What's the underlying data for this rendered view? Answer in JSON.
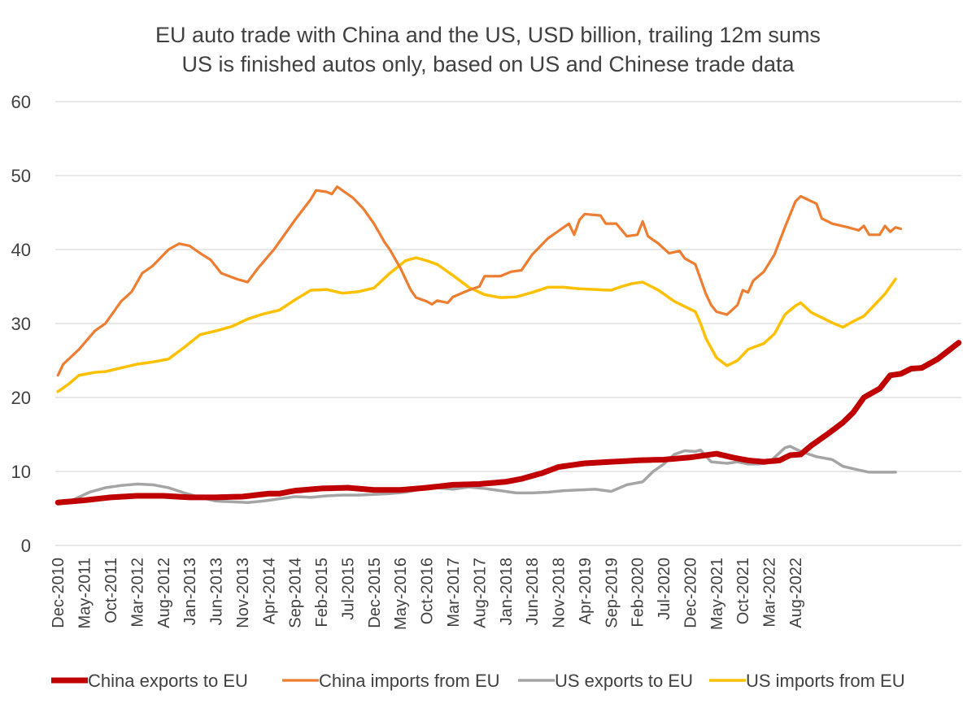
{
  "chart_data": {
    "type": "line",
    "title": "EU auto trade with China and the US, USD billion, trailing 12m sums",
    "subtitle": "US is finished autos only, based on US and Chinese trade data",
    "xlabel": "",
    "ylabel": "",
    "ylim": [
      0,
      60
    ],
    "yticks": [
      "0",
      "10",
      "20",
      "30",
      "40",
      "50",
      "60"
    ],
    "grid": true,
    "legend_position": "bottom",
    "x_start": "Dec-2010",
    "x_end": "Nov-2022",
    "x_tick_step_months": 5,
    "x_tick_labels": [
      "Dec-2010",
      "May-2011",
      "Oct-2011",
      "Mar-2012",
      "Aug-2012",
      "Jan-2013",
      "Jun-2013",
      "Nov-2013",
      "Apr-2014",
      "Sep-2014",
      "Feb-2015",
      "Jul-2015",
      "Dec-2015",
      "May-2016",
      "Oct-2016",
      "Mar-2017",
      "Aug-2017",
      "Jan-2018",
      "Jun-2018",
      "Nov-2018",
      "Apr-2019",
      "Sep-2019",
      "Feb-2020",
      "Jul-2020",
      "Dec-2020",
      "May-2021",
      "Oct-2021",
      "Mar-2022",
      "Aug-2022"
    ],
    "series": [
      {
        "name": "China exports to EU",
        "color": "#C00000",
        "width": 7,
        "keypoints": [
          [
            0,
            5.8
          ],
          [
            5,
            6.1
          ],
          [
            10,
            6.5
          ],
          [
            15,
            6.7
          ],
          [
            20,
            6.7
          ],
          [
            25,
            6.5
          ],
          [
            30,
            6.5
          ],
          [
            35,
            6.6
          ],
          [
            40,
            7.0
          ],
          [
            42,
            7.0
          ],
          [
            45,
            7.4
          ],
          [
            50,
            7.7
          ],
          [
            55,
            7.8
          ],
          [
            60,
            7.5
          ],
          [
            65,
            7.5
          ],
          [
            70,
            7.8
          ],
          [
            75,
            8.2
          ],
          [
            80,
            8.3
          ],
          [
            85,
            8.6
          ],
          [
            88,
            9.0
          ],
          [
            92,
            9.8
          ],
          [
            95,
            10.6
          ],
          [
            100,
            11.1
          ],
          [
            105,
            11.3
          ],
          [
            110,
            11.5
          ],
          [
            115,
            11.6
          ],
          [
            120,
            11.9
          ],
          [
            125,
            12.4
          ],
          [
            128,
            11.9
          ],
          [
            131,
            11.5
          ],
          [
            134,
            11.3
          ],
          [
            137,
            11.5
          ],
          [
            139,
            12.2
          ],
          [
            141,
            12.3
          ],
          [
            143,
            13.5
          ],
          [
            146,
            15.0
          ],
          [
            149,
            16.6
          ],
          [
            151,
            18.0
          ],
          [
            153,
            20.0
          ],
          [
            156,
            21.2
          ],
          [
            158,
            23.0
          ],
          [
            160,
            23.2
          ],
          [
            162,
            23.9
          ],
          [
            164,
            24.0
          ],
          [
            167,
            25.2
          ],
          [
            169,
            26.3
          ],
          [
            171,
            27.4
          ]
        ]
      },
      {
        "name": "China imports from EU",
        "color": "#ED7D31",
        "width": 3.2,
        "keypoints": [
          [
            0,
            23.0
          ],
          [
            1,
            24.5
          ],
          [
            4,
            26.5
          ],
          [
            7,
            29.0
          ],
          [
            9,
            30.0
          ],
          [
            12,
            33.0
          ],
          [
            14,
            34.3
          ],
          [
            16,
            36.8
          ],
          [
            18,
            37.8
          ],
          [
            21,
            40.0
          ],
          [
            23,
            40.8
          ],
          [
            25,
            40.5
          ],
          [
            27,
            39.5
          ],
          [
            29,
            38.6
          ],
          [
            31,
            36.8
          ],
          [
            34,
            36.0
          ],
          [
            36,
            35.6
          ],
          [
            38,
            37.5
          ],
          [
            41,
            40.0
          ],
          [
            43,
            42.0
          ],
          [
            45,
            44.0
          ],
          [
            48,
            46.8
          ],
          [
            49,
            48.0
          ],
          [
            51,
            47.8
          ],
          [
            52,
            47.5
          ],
          [
            53,
            48.5
          ],
          [
            56,
            47.0
          ],
          [
            58,
            45.5
          ],
          [
            60,
            43.5
          ],
          [
            62,
            41.0
          ],
          [
            63,
            40.0
          ],
          [
            65,
            37.5
          ],
          [
            67,
            34.5
          ],
          [
            68,
            33.5
          ],
          [
            70,
            33.0
          ],
          [
            71,
            32.6
          ],
          [
            72,
            33.1
          ],
          [
            74,
            32.8
          ],
          [
            75,
            33.6
          ],
          [
            78,
            34.5
          ],
          [
            80,
            35.0
          ],
          [
            81,
            36.4
          ],
          [
            84,
            36.4
          ],
          [
            86,
            37.0
          ],
          [
            88,
            37.2
          ],
          [
            90,
            39.3
          ],
          [
            93,
            41.5
          ],
          [
            95,
            42.5
          ],
          [
            97,
            43.5
          ],
          [
            98,
            42.0
          ],
          [
            99,
            44.0
          ],
          [
            100,
            44.8
          ],
          [
            103,
            44.6
          ],
          [
            104,
            43.5
          ],
          [
            106,
            43.5
          ],
          [
            108,
            41.8
          ],
          [
            110,
            42.0
          ],
          [
            111,
            43.8
          ],
          [
            112,
            41.8
          ],
          [
            114,
            40.8
          ],
          [
            116,
            39.5
          ],
          [
            118,
            39.8
          ],
          [
            119,
            38.8
          ],
          [
            121,
            38.0
          ],
          [
            123,
            34.0
          ],
          [
            124,
            32.5
          ],
          [
            125,
            31.6
          ],
          [
            127,
            31.2
          ],
          [
            129,
            32.5
          ],
          [
            130,
            34.5
          ],
          [
            131,
            34.2
          ],
          [
            132,
            35.8
          ],
          [
            134,
            37.0
          ],
          [
            136,
            39.3
          ],
          [
            138,
            43.0
          ],
          [
            140,
            46.5
          ],
          [
            141,
            47.2
          ],
          [
            144,
            46.2
          ],
          [
            145,
            44.2
          ],
          [
            147,
            43.5
          ],
          [
            150,
            43.0
          ],
          [
            152,
            42.6
          ],
          [
            153,
            43.2
          ],
          [
            154,
            42.0
          ],
          [
            156,
            42.0
          ],
          [
            157,
            43.2
          ],
          [
            158,
            42.4
          ],
          [
            159,
            43.0
          ],
          [
            160,
            42.8
          ]
        ]
      },
      {
        "name": "US exports to EU",
        "color": "#A5A5A5",
        "width": 3.5,
        "keypoints": [
          [
            0,
            5.8
          ],
          [
            3,
            6.2
          ],
          [
            6,
            7.2
          ],
          [
            9,
            7.8
          ],
          [
            12,
            8.1
          ],
          [
            15,
            8.3
          ],
          [
            18,
            8.2
          ],
          [
            21,
            7.8
          ],
          [
            24,
            7.1
          ],
          [
            27,
            6.5
          ],
          [
            30,
            6.0
          ],
          [
            33,
            5.9
          ],
          [
            36,
            5.8
          ],
          [
            39,
            6.0
          ],
          [
            42,
            6.3
          ],
          [
            45,
            6.6
          ],
          [
            48,
            6.5
          ],
          [
            51,
            6.7
          ],
          [
            54,
            6.8
          ],
          [
            57,
            6.8
          ],
          [
            60,
            6.9
          ],
          [
            63,
            7.0
          ],
          [
            66,
            7.2
          ],
          [
            69,
            7.6
          ],
          [
            72,
            7.8
          ],
          [
            75,
            7.6
          ],
          [
            78,
            7.9
          ],
          [
            81,
            7.7
          ],
          [
            84,
            7.4
          ],
          [
            87,
            7.1
          ],
          [
            90,
            7.1
          ],
          [
            93,
            7.2
          ],
          [
            96,
            7.4
          ],
          [
            99,
            7.5
          ],
          [
            102,
            7.6
          ],
          [
            105,
            7.3
          ],
          [
            108,
            8.2
          ],
          [
            111,
            8.6
          ],
          [
            113,
            10.0
          ],
          [
            115,
            11.0
          ],
          [
            117,
            12.3
          ],
          [
            119,
            12.8
          ],
          [
            121,
            12.7
          ],
          [
            122,
            12.9
          ],
          [
            124,
            11.3
          ],
          [
            127,
            11.1
          ],
          [
            129,
            11.3
          ],
          [
            131,
            11.0
          ],
          [
            133,
            11.0
          ],
          [
            135,
            11.2
          ],
          [
            138,
            13.2
          ],
          [
            139,
            13.4
          ],
          [
            141,
            12.7
          ],
          [
            144,
            12.0
          ],
          [
            147,
            11.6
          ],
          [
            149,
            10.7
          ],
          [
            152,
            10.2
          ],
          [
            154,
            9.9
          ],
          [
            157,
            9.9
          ],
          [
            159,
            9.9
          ]
        ]
      },
      {
        "name": "US imports from EU",
        "color": "#FFC000",
        "width": 3.5,
        "keypoints": [
          [
            0,
            20.8
          ],
          [
            2,
            21.8
          ],
          [
            4,
            23.0
          ],
          [
            7,
            23.4
          ],
          [
            9,
            23.5
          ],
          [
            12,
            24.0
          ],
          [
            15,
            24.5
          ],
          [
            18,
            24.8
          ],
          [
            21,
            25.2
          ],
          [
            24,
            26.8
          ],
          [
            27,
            28.5
          ],
          [
            30,
            29.0
          ],
          [
            33,
            29.6
          ],
          [
            36,
            30.6
          ],
          [
            39,
            31.3
          ],
          [
            42,
            31.8
          ],
          [
            45,
            33.2
          ],
          [
            48,
            34.5
          ],
          [
            51,
            34.6
          ],
          [
            54,
            34.1
          ],
          [
            57,
            34.3
          ],
          [
            60,
            34.8
          ],
          [
            63,
            36.8
          ],
          [
            66,
            38.5
          ],
          [
            68,
            38.9
          ],
          [
            70,
            38.5
          ],
          [
            72,
            38.0
          ],
          [
            75,
            36.5
          ],
          [
            78,
            34.9
          ],
          [
            81,
            33.9
          ],
          [
            84,
            33.5
          ],
          [
            87,
            33.6
          ],
          [
            90,
            34.2
          ],
          [
            93,
            34.9
          ],
          [
            96,
            34.9
          ],
          [
            99,
            34.7
          ],
          [
            102,
            34.6
          ],
          [
            105,
            34.5
          ],
          [
            107,
            35.0
          ],
          [
            109,
            35.4
          ],
          [
            111,
            35.6
          ],
          [
            114,
            34.5
          ],
          [
            117,
            33.0
          ],
          [
            119,
            32.3
          ],
          [
            121,
            31.6
          ],
          [
            122,
            30.0
          ],
          [
            123,
            28.0
          ],
          [
            125,
            25.4
          ],
          [
            127,
            24.3
          ],
          [
            129,
            25.0
          ],
          [
            131,
            26.5
          ],
          [
            134,
            27.3
          ],
          [
            136,
            28.6
          ],
          [
            138,
            31.2
          ],
          [
            140,
            32.4
          ],
          [
            141,
            32.8
          ],
          [
            143,
            31.5
          ],
          [
            145,
            30.8
          ],
          [
            147,
            30.1
          ],
          [
            149,
            29.5
          ],
          [
            151,
            30.3
          ],
          [
            153,
            31.0
          ],
          [
            155,
            32.5
          ],
          [
            157,
            34.0
          ],
          [
            159,
            36.0
          ]
        ]
      }
    ]
  }
}
